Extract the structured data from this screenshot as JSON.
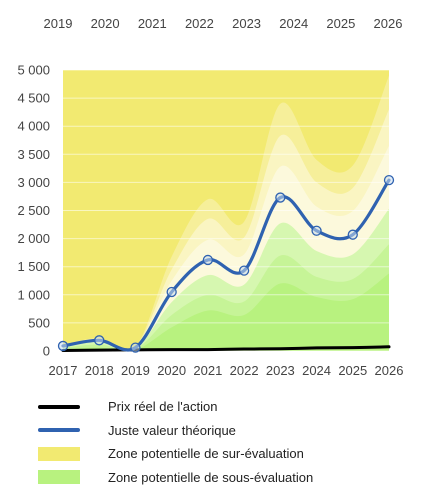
{
  "chart_data": {
    "type": "area",
    "x_bottom": [
      "2017",
      "2018",
      "2019",
      "2020",
      "2021",
      "2022",
      "2023",
      "2024",
      "2025",
      "2026"
    ],
    "x_top": [
      "2019",
      "2020",
      "2021",
      "2022",
      "2023",
      "2024",
      "2025",
      "2026"
    ],
    "yticks": [
      "0",
      "500",
      "1 000",
      "1 500",
      "2 000",
      "2 500",
      "3 000",
      "3 500",
      "4 000",
      "4 500",
      "5 000"
    ],
    "ylim": [
      0,
      5000
    ],
    "series": [
      {
        "name": "Prix réel de l'action",
        "color": "#000000",
        "values": [
          10,
          15,
          20,
          25,
          25,
          35,
          40,
          55,
          60,
          75
        ]
      },
      {
        "name": "Juste valeur théorique",
        "color": "#2f62b0",
        "values": [
          90,
          190,
          60,
          1050,
          1620,
          1430,
          2730,
          2140,
          2070,
          3040
        ]
      },
      {
        "name": "Zone potentielle de sur-évaluation",
        "color": "#f2ea71",
        "upper": [
          5000,
          5000,
          5000,
          5000,
          5000,
          5000,
          5000,
          5000,
          5000,
          5000
        ]
      },
      {
        "name": "Zone potentielle de sous-évaluation",
        "color": "#b8f27f",
        "upper": [
          30,
          60,
          20,
          420,
          720,
          640,
          1200,
          960,
          920,
          1380
        ]
      }
    ],
    "valuation_bands": {
      "overvaluation_upper": [
        110,
        230,
        70,
        1680,
        2700,
        2300,
        4400,
        3400,
        3300,
        4900
      ],
      "light_yellow_upper": [
        100,
        215,
        66,
        1450,
        2350,
        2020,
        3830,
        3000,
        2900,
        4300
      ],
      "cream_upper": [
        95,
        200,
        63,
        1250,
        1980,
        1720,
        3280,
        2570,
        2490,
        3650
      ],
      "green_light_upper": [
        75,
        160,
        50,
        870,
        1350,
        1180,
        2270,
        1780,
        1720,
        2530
      ],
      "green_mid_upper": [
        55,
        115,
        36,
        640,
        1000,
        880,
        1700,
        1320,
        1280,
        1900
      ]
    }
  }
}
